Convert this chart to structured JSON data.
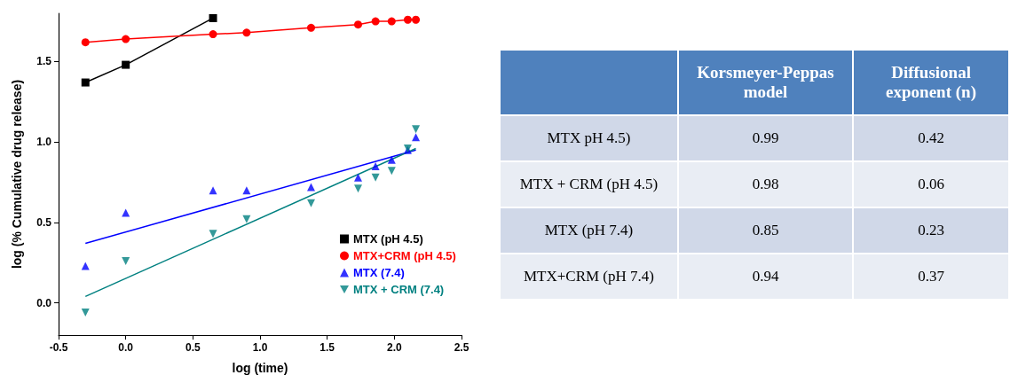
{
  "chart_data": [
    {
      "type": "scatter",
      "xlabel": "log (time)",
      "ylabel": "log (% Cumulative drug release)",
      "xlim": [
        -0.5,
        2.5
      ],
      "xticks": [
        {
          "value": -0.5,
          "label": "-0.5"
        },
        {
          "value": 0,
          "label": "0.0"
        },
        0.5,
        {
          "value": 1,
          "label": "1.0"
        },
        1.5,
        {
          "value": 2,
          "label": "2.0"
        },
        2.5
      ],
      "ylim": [
        -0.2,
        1.8
      ],
      "yticks": [
        {
          "value": 0,
          "label": "0.0"
        },
        0.5,
        {
          "value": 1,
          "label": "1.0"
        },
        1.5
      ],
      "grid": false,
      "legend": "bottom right",
      "series": [
        {
          "name": "MTX (pH 4.5)",
          "type": "line",
          "marker": "square",
          "color": "#000000",
          "x": [
            -0.3,
            0,
            0.65
          ],
          "values": [
            1.37,
            1.48,
            1.77
          ]
        },
        {
          "name": "MTX+CRM (pH 4.5)",
          "type": "line",
          "marker": "circle",
          "color": "#ff0000",
          "x": [
            -0.3,
            0,
            0.65,
            0.9,
            1.38,
            1.73,
            1.86,
            1.98,
            2.1,
            2.16
          ],
          "values": [
            1.62,
            1.64,
            1.67,
            1.68,
            1.71,
            1.73,
            1.75,
            1.75,
            1.76,
            1.76
          ]
        },
        {
          "name": "MTX (7.4)",
          "type": "scatter",
          "marker": "triangle",
          "color": "#0000ff",
          "x": [
            -0.3,
            0,
            0.65,
            0.9,
            1.38,
            1.73,
            1.86,
            1.98,
            2.1,
            2.16
          ],
          "values": [
            0.23,
            0.56,
            0.7,
            0.7,
            0.72,
            0.78,
            0.85,
            0.89,
            0.95,
            1.03
          ]
        },
        {
          "name": "MTX + CRM (7.4)",
          "type": "scatter",
          "marker": "triangle-down",
          "color": "#008080",
          "x": [
            -0.3,
            0,
            0.65,
            0.9,
            1.38,
            1.73,
            1.86,
            1.98,
            2.1,
            2.16
          ],
          "values": [
            -0.06,
            0.26,
            0.43,
            0.52,
            0.62,
            0.71,
            0.78,
            0.82,
            0.96,
            1.08
          ]
        },
        {
          "type": "line",
          "marker": "none",
          "color": "#0000ff",
          "x": [
            -0.3,
            2.16
          ],
          "values": [
            0.37,
            0.95
          ]
        },
        {
          "type": "line",
          "marker": "none",
          "color": "#008080",
          "x": [
            -0.3,
            2.16
          ],
          "values": [
            0.04,
            0.96
          ]
        }
      ]
    },
    {
      "type": "other",
      "categories": [
        "MTX pH 4.5)",
        "MTX + CRM (pH 4.5)",
        "MTX (pH 7.4)",
        "MTX+CRM (pH 7.4)"
      ],
      "data_labels": true,
      "series": [
        {
          "name": "Korsmeyer-Peppas model",
          "values": [
            0.99,
            0.98,
            0.85,
            0.94
          ],
          "colors": [
            "#d0d8e8",
            "#e9edf4",
            "#d0d8e8",
            "#e9edf4"
          ]
        },
        {
          "name": "Diffusional exponent  (n)",
          "values": [
            0.42,
            0.06,
            0.23,
            0.37
          ],
          "colors": [
            "#d0d8e8",
            "#e9edf4",
            "#d0d8e8",
            "#e9edf4"
          ]
        }
      ]
    }
  ]
}
